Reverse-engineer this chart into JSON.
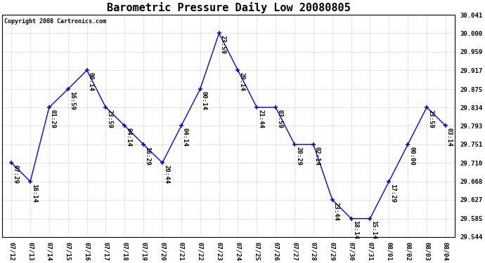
{
  "title": "Barometric Pressure Daily Low 20080805",
  "copyright": "Copyright 2008 Cartronics.com",
  "x_labels": [
    "07/12",
    "07/13",
    "07/14",
    "07/15",
    "07/16",
    "07/17",
    "07/18",
    "07/19",
    "07/20",
    "07/21",
    "07/22",
    "07/23",
    "07/24",
    "07/25",
    "07/26",
    "07/27",
    "07/28",
    "07/29",
    "07/30",
    "07/31",
    "08/01",
    "08/02",
    "08/03",
    "08/04"
  ],
  "y_values": [
    29.71,
    29.668,
    29.834,
    29.875,
    29.917,
    29.834,
    29.793,
    29.751,
    29.71,
    29.793,
    29.875,
    30.0,
    29.917,
    29.834,
    29.834,
    29.751,
    29.751,
    29.627,
    29.585,
    29.585,
    29.668,
    29.751,
    29.834,
    29.793
  ],
  "time_labels": [
    "07:29",
    "16:14",
    "01:29",
    "16:59",
    "00:14",
    "23:59",
    "04:14",
    "16:29",
    "20:44",
    "04:14",
    "00:14",
    "23:59",
    "20:14",
    "21:44",
    "03:59",
    "20:29",
    "02:14",
    "23:44",
    "18:14",
    "15:14",
    "17:29",
    "00:00",
    "23:59",
    "03:14"
  ],
  "ylim_min": 29.544,
  "ylim_max": 30.041,
  "yticks": [
    29.544,
    29.585,
    29.627,
    29.668,
    29.71,
    29.751,
    29.793,
    29.834,
    29.875,
    29.917,
    29.959,
    30.0,
    30.041
  ],
  "line_color": "blue",
  "bg_color": "white",
  "grid_color": "#bbbbbb",
  "title_fontsize": 11,
  "annotation_fontsize": 6.5,
  "tick_fontsize": 6.5,
  "copyright_fontsize": 6
}
